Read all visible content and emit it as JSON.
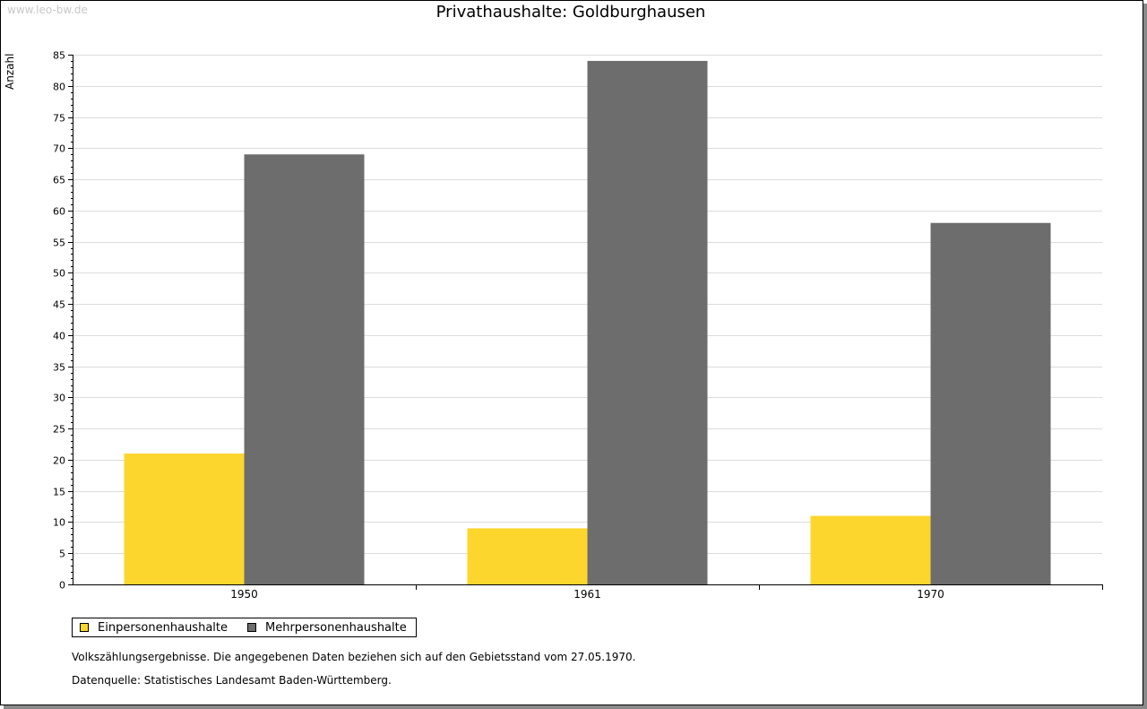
{
  "watermark": "www.leo-bw.de",
  "notes": {
    "census": "Volkszählungsergebnisse. Die angegebenen Daten beziehen sich auf den Gebietsstand vom 27.05.1970.",
    "source": "Datenquelle: Statistisches Landesamt Baden-Württemberg."
  },
  "chart_data": {
    "type": "bar",
    "title": "Privathaushalte: Goldburghausen",
    "xlabel": "",
    "ylabel": "Anzahl",
    "ylim": [
      0,
      85
    ],
    "ytick_step": 5,
    "grid": true,
    "legend": "bottom-left",
    "categories": [
      "1950",
      "1961",
      "1970"
    ],
    "series": [
      {
        "name": "Einpersonenhaushalte",
        "color": "#fcd62d",
        "values": [
          21,
          9,
          11
        ]
      },
      {
        "name": "Mehrpersonenhaushalte",
        "color": "#6d6d6d",
        "values": [
          69,
          84,
          58
        ]
      }
    ]
  }
}
